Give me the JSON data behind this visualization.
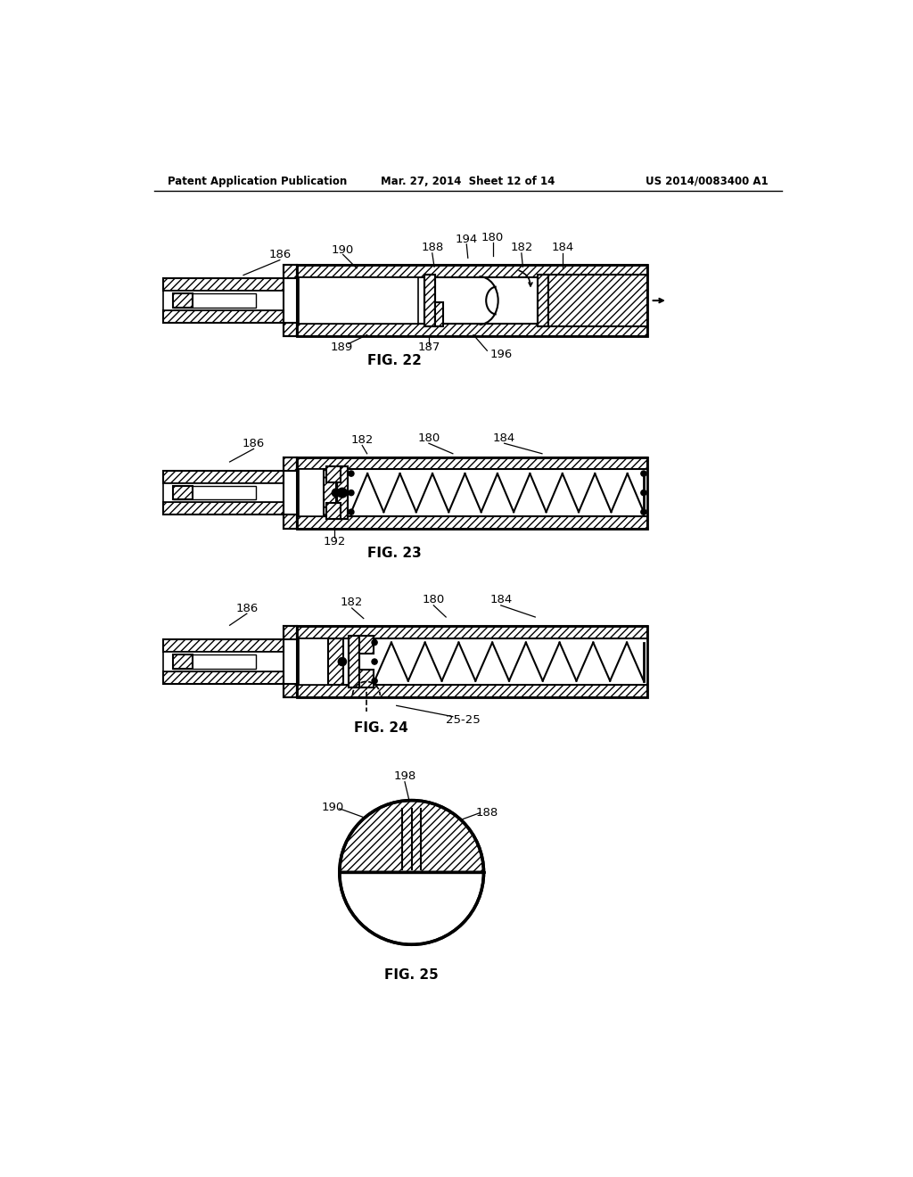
{
  "bg_color": "#ffffff",
  "header_left": "Patent Application Publication",
  "header_mid": "Mar. 27, 2014  Sheet 12 of 14",
  "header_right": "US 2014/0083400 A1",
  "fig22_label": "FIG. 22",
  "fig23_label": "FIG. 23",
  "fig24_label": "FIG. 24",
  "fig25_label": "FIG. 25",
  "line_color": "#000000"
}
